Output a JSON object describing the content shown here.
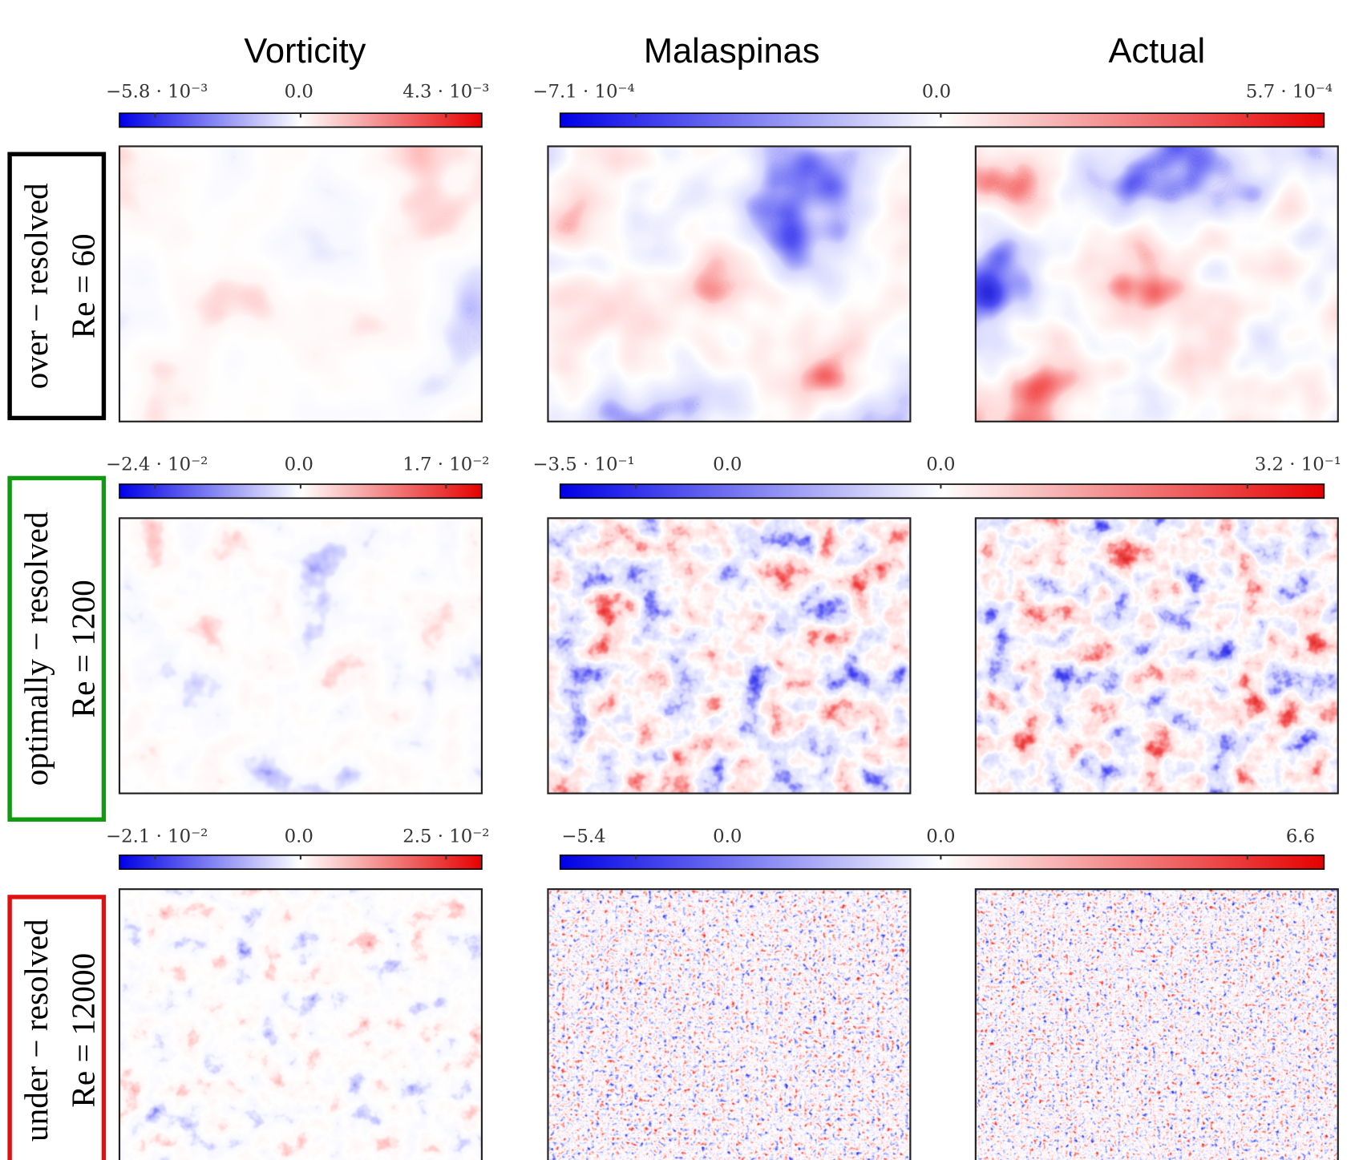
{
  "columns": [
    "Vorticity",
    "Malaspinas",
    "Actual"
  ],
  "rows": [
    {
      "label_line1": "over − resolved",
      "label_line2": "Re = 60",
      "vorticity_colorbar": [
        "−5.8 · 10⁻³",
        "0.0",
        "4.3 · 10⁻³"
      ],
      "model_colorbar": [
        "−7.1 · 10⁻⁴",
        "0.0",
        "5.7 · 10⁻⁴"
      ]
    },
    {
      "label_line1": "optimally − resolved",
      "label_line2": "Re = 1200",
      "vorticity_colorbar": [
        "−2.4 · 10⁻²",
        "0.0",
        "1.7 · 10⁻²"
      ],
      "model_colorbar": [
        "−3.5 · 10⁻¹",
        "0.0",
        "0.0",
        "3.2 · 10⁻¹"
      ]
    },
    {
      "label_line1": "under − resolved",
      "label_line2": "Re = 12000",
      "vorticity_colorbar": [
        "−2.1 · 10⁻²",
        "0.0",
        "2.5 · 10⁻²"
      ],
      "model_colorbar": [
        "−5.4",
        "0.0",
        "0.0",
        "6.6"
      ]
    }
  ]
}
